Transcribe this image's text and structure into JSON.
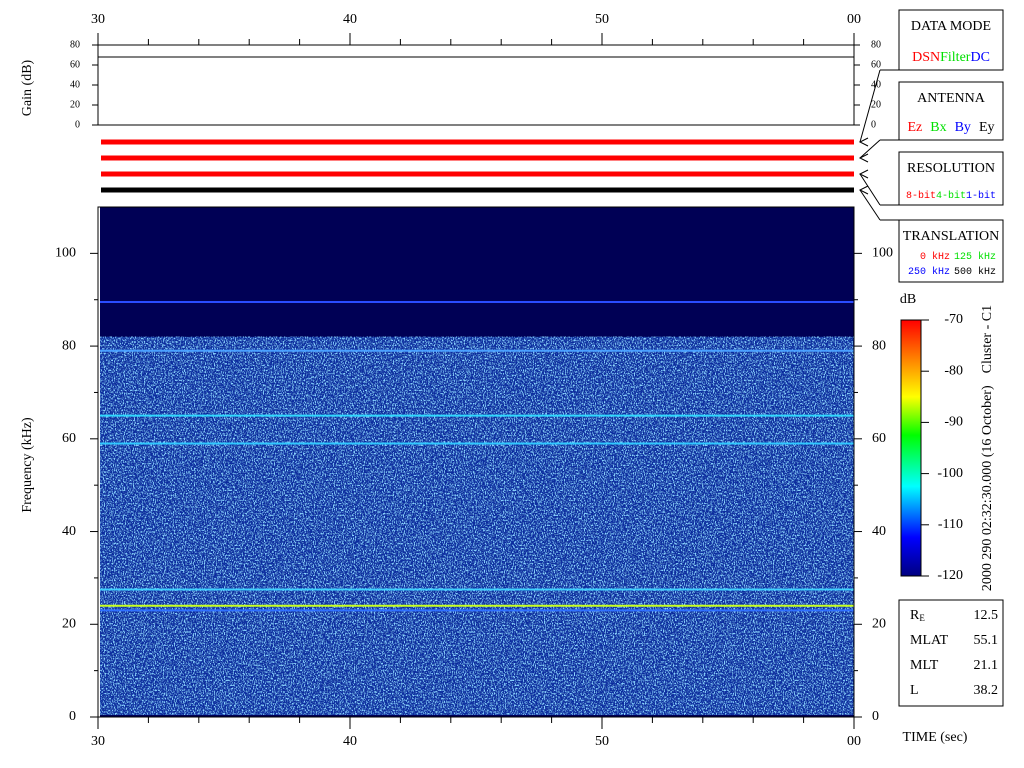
{
  "chart_data": {
    "type": "spectrogram",
    "xlabel": "TIME (sec)",
    "ylabel": "Frequency (kHz)",
    "xlim": [
      30,
      60
    ],
    "xticks": [
      30,
      40,
      50,
      {
        "value": 60,
        "label": "00"
      }
    ],
    "xminor": [
      32,
      34,
      36,
      38,
      42,
      44,
      46,
      48,
      52,
      54,
      56,
      58
    ],
    "ylim": [
      0,
      110
    ],
    "yticks": [
      0,
      20,
      40,
      60,
      80,
      100
    ],
    "yminor": [
      10,
      30,
      50,
      70,
      90
    ],
    "background": "#000055",
    "noise_top": 82,
    "lines": [
      {
        "y": 89.5,
        "color": "#2a4cff"
      },
      {
        "y": 79,
        "color": "#4aa0ff"
      },
      {
        "y": 65,
        "color": "#30d8ff"
      },
      {
        "y": 59,
        "color": "#30c8ff"
      },
      {
        "y": 27.5,
        "color": "#40d0ff"
      },
      {
        "y": 24,
        "color": "#c8ff20"
      },
      {
        "y": 23,
        "color": "#3070ff"
      }
    ],
    "gain": {
      "ylabel": "Gain (dB)",
      "ylim": [
        0,
        80
      ],
      "yticks": [
        0,
        20,
        40,
        60,
        80
      ],
      "value": 68
    },
    "colorbar": {
      "label": "dB",
      "lim": [
        -120,
        -70
      ],
      "ticks": [
        -120,
        -110,
        -100,
        -90,
        -80,
        -70
      ]
    },
    "time_label": "2000 290 02:32:30.000 (16 October)",
    "spacecraft": "Cluster - C1",
    "panels": [
      {
        "title": "DATA MODE",
        "bar_color": "#ff0000",
        "rows": [
          [
            {
              "text": "DSN",
              "color": "#ff0000"
            },
            {
              "text": "Filter",
              "color": "#00e000"
            },
            {
              "text": "DC",
              "color": "#0000ff"
            }
          ]
        ]
      },
      {
        "title": "ANTENNA",
        "bar_color": "#ff0000",
        "rows": [
          [
            {
              "text": "Ez",
              "color": "#ff0000"
            },
            {
              "text": "Bx",
              "color": "#00e000"
            },
            {
              "text": "By",
              "color": "#0000ff"
            },
            {
              "text": "Ey",
              "color": "#000000"
            }
          ]
        ]
      },
      {
        "title": "RESOLUTION",
        "bar_color": "#ff0000",
        "rows": [
          [
            {
              "text": "8-bit",
              "color": "#ff0000"
            },
            {
              "text": "4-bit",
              "color": "#00e000"
            },
            {
              "text": "1-bit",
              "color": "#0000ff"
            }
          ]
        ]
      },
      {
        "title": "TRANSLATION",
        "bar_color": "#000000",
        "rows": [
          [
            {
              "text": "0 kHz",
              "color": "#ff0000"
            },
            {
              "text": "125 kHz",
              "color": "#00e000"
            }
          ],
          [
            {
              "text": "250 kHz",
              "color": "#0000ff"
            },
            {
              "text": "500 kHz",
              "color": "#000000"
            }
          ]
        ]
      }
    ],
    "ephemeris": [
      {
        "label": "R",
        "sub": "E",
        "value": 12.5
      },
      {
        "label": "MLAT",
        "value": 55.1
      },
      {
        "label": "MLT",
        "value": 21.1
      },
      {
        "label": "L",
        "value": 38.2
      }
    ]
  }
}
